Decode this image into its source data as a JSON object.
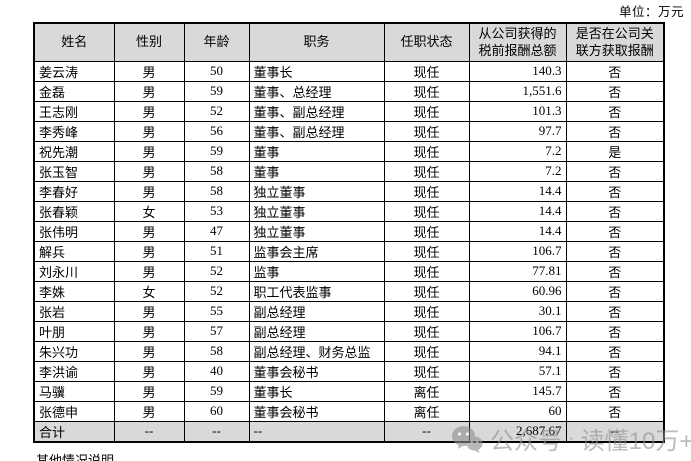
{
  "meta": {
    "unit_label": "单位：万元"
  },
  "table": {
    "columns": [
      {
        "key": "name",
        "label": "姓名"
      },
      {
        "key": "gender",
        "label": "性别"
      },
      {
        "key": "age",
        "label": "年龄"
      },
      {
        "key": "position",
        "label": "职务"
      },
      {
        "key": "status",
        "label": "任职状态"
      },
      {
        "key": "compensation",
        "label": "从公司获得的\n税前报酬总额"
      },
      {
        "key": "related",
        "label": "是否在公司关\n联方获取报酬"
      }
    ],
    "rows": [
      [
        "姜云涛",
        "男",
        "50",
        "董事长",
        "现任",
        "140.3",
        "否"
      ],
      [
        "金磊",
        "男",
        "59",
        "董事、总经理",
        "现任",
        "1,551.6",
        "否"
      ],
      [
        "王志刚",
        "男",
        "52",
        "董事、副总经理",
        "现任",
        "101.3",
        "否"
      ],
      [
        "李秀峰",
        "男",
        "56",
        "董事、副总经理",
        "现任",
        "97.7",
        "否"
      ],
      [
        "祝先潮",
        "男",
        "59",
        "董事",
        "现任",
        "7.2",
        "是"
      ],
      [
        "张玉智",
        "男",
        "58",
        "董事",
        "现任",
        "7.2",
        "否"
      ],
      [
        "李春好",
        "男",
        "58",
        "独立董事",
        "现任",
        "14.4",
        "否"
      ],
      [
        "张春颖",
        "女",
        "53",
        "独立董事",
        "现任",
        "14.4",
        "否"
      ],
      [
        "张伟明",
        "男",
        "47",
        "独立董事",
        "现任",
        "14.4",
        "否"
      ],
      [
        "解兵",
        "男",
        "51",
        "监事会主席",
        "现任",
        "106.7",
        "否"
      ],
      [
        "刘永川",
        "男",
        "52",
        "监事",
        "现任",
        "77.81",
        "否"
      ],
      [
        "李姝",
        "女",
        "52",
        "职工代表监事",
        "现任",
        "60.96",
        "否"
      ],
      [
        "张岩",
        "男",
        "55",
        "副总经理",
        "现任",
        "30.1",
        "否"
      ],
      [
        "叶朋",
        "男",
        "57",
        "副总经理",
        "现任",
        "106.7",
        "否"
      ],
      [
        "朱兴功",
        "男",
        "58",
        "副总经理、财务总监",
        "现任",
        "94.1",
        "否"
      ],
      [
        "李洪谕",
        "男",
        "40",
        "董事会秘书",
        "现任",
        "57.1",
        "否"
      ],
      [
        "马骥",
        "男",
        "59",
        "董事长",
        "离任",
        "145.7",
        "否"
      ],
      [
        "张德申",
        "男",
        "60",
        "董事会秘书",
        "离任",
        "60",
        "否"
      ]
    ],
    "total_row": [
      "合计",
      "--",
      "--",
      "--",
      "--",
      "2,687.67",
      "--"
    ]
  },
  "watermark": {
    "icon": "wechat-icon",
    "text_primary": "公众号",
    "separator": "·",
    "text_secondary": "读懂10万+"
  },
  "footer": {
    "clipped_text": "其他情况说明"
  },
  "colors": {
    "header_bg": "#d9d9d9",
    "total_bg": "#d9d9d9",
    "border": "#000000",
    "watermark": "#919191"
  }
}
